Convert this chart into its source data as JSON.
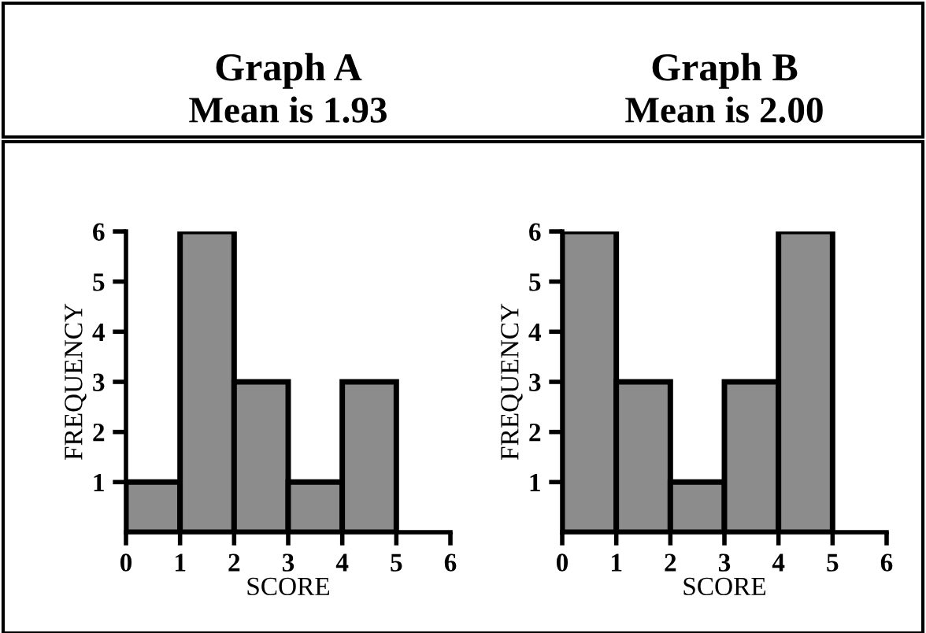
{
  "chart_data": [
    {
      "type": "histogram",
      "title": "Graph A",
      "subtitle": "Mean is 1.93",
      "xlabel": "SCORE",
      "ylabel": "FREQUENCY",
      "bins": [
        0,
        1,
        2,
        3,
        4,
        5
      ],
      "values": [
        1,
        6,
        3,
        1,
        3
      ],
      "color": "#8c8c8c",
      "xlim": [
        0,
        6
      ],
      "xticks": [
        0,
        1,
        2,
        3,
        4,
        5,
        6
      ],
      "ylim": [
        0,
        6
      ],
      "yticks": [
        1,
        2,
        3,
        4,
        5,
        6
      ],
      "grid": false,
      "legend": false
    },
    {
      "type": "histogram",
      "title": "Graph B",
      "subtitle": "Mean is 2.00",
      "xlabel": "SCORE",
      "ylabel": "FREQUENCY",
      "bins": [
        0,
        1,
        2,
        3,
        4,
        5
      ],
      "values": [
        6,
        3,
        1,
        3,
        6
      ],
      "color": "#8c8c8c",
      "xlim": [
        0,
        6
      ],
      "xticks": [
        0,
        1,
        2,
        3,
        4,
        5,
        6
      ],
      "ylim": [
        0,
        6
      ],
      "yticks": [
        1,
        2,
        3,
        4,
        5,
        6
      ],
      "grid": false,
      "legend": false
    }
  ]
}
